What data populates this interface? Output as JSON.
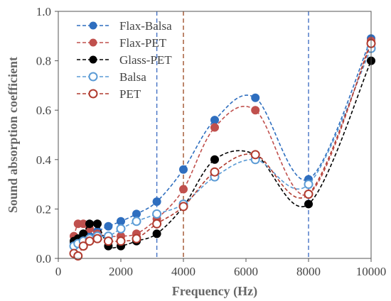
{
  "chart_data": {
    "type": "scatter",
    "xlabel": "Frequency (Hz)",
    "ylabel": "Sound absorption coefficient",
    "xlim": [
      0,
      10000
    ],
    "ylim": [
      0,
      1.0
    ],
    "x_ticks": [
      "0",
      "2000",
      "4000",
      "6000",
      "8000",
      "10000"
    ],
    "y_ticks": [
      "0.0",
      "0.2",
      "0.4",
      "0.6",
      "0.8",
      "1.0"
    ],
    "grid": false,
    "legend_position": "top-left",
    "reference_lines": [
      {
        "x": 3150,
        "color": "#4472C4"
      },
      {
        "x": 4000,
        "color": "#A0522D"
      },
      {
        "x": 8000,
        "color": "#4472C4"
      }
    ],
    "series": [
      {
        "name": "Flax-Balsa",
        "color": "#2E6EBF",
        "marker": "filled",
        "line": "dashed",
        "x": [
          500,
          630,
          800,
          1000,
          1250,
          1600,
          2000,
          2500,
          3150,
          4000,
          5000,
          6300,
          8000,
          10000
        ],
        "y": [
          0.06,
          0.07,
          0.08,
          0.09,
          0.11,
          0.13,
          0.15,
          0.18,
          0.23,
          0.36,
          0.56,
          0.65,
          0.32,
          0.89
        ]
      },
      {
        "name": "Flax-PET",
        "color": "#C0504D",
        "marker": "filled",
        "line": "dashed",
        "x": [
          500,
          630,
          800,
          1000,
          1250,
          1600,
          2000,
          2500,
          3150,
          4000,
          5000,
          6300,
          8000,
          10000
        ],
        "y": [
          0.09,
          0.14,
          0.14,
          0.12,
          0.1,
          0.09,
          0.09,
          0.1,
          0.16,
          0.28,
          0.53,
          0.6,
          0.26,
          0.88
        ]
      },
      {
        "name": "Glass-PET",
        "color": "#000000",
        "marker": "filled",
        "line": "dashed",
        "x": [
          500,
          630,
          800,
          1000,
          1250,
          1600,
          2000,
          2500,
          3150,
          4000,
          5000,
          6300,
          8000,
          10000
        ],
        "y": [
          0.07,
          0.08,
          0.1,
          0.14,
          0.14,
          0.05,
          0.05,
          0.07,
          0.1,
          0.21,
          0.4,
          0.42,
          0.22,
          0.8
        ]
      },
      {
        "name": "Balsa",
        "color": "#5B9BD5",
        "marker": "hollow",
        "line": "dashed",
        "x": [
          500,
          630,
          800,
          1000,
          1250,
          1600,
          2000,
          2500,
          3150,
          4000,
          5000,
          6300,
          8000,
          10000
        ],
        "y": [
          0.05,
          0.06,
          0.07,
          0.08,
          0.09,
          0.09,
          0.12,
          0.15,
          0.18,
          0.22,
          0.33,
          0.4,
          0.3,
          0.85
        ]
      },
      {
        "name": "PET",
        "color": "#B03A2E",
        "marker": "hollow",
        "line": "dashed",
        "x": [
          500,
          630,
          800,
          1000,
          1250,
          1600,
          2000,
          2500,
          3150,
          4000,
          5000,
          6300,
          8000,
          10000
        ],
        "y": [
          0.02,
          0.01,
          0.05,
          0.07,
          0.08,
          0.07,
          0.07,
          0.08,
          0.14,
          0.21,
          0.35,
          0.42,
          0.26,
          0.87
        ]
      }
    ]
  }
}
